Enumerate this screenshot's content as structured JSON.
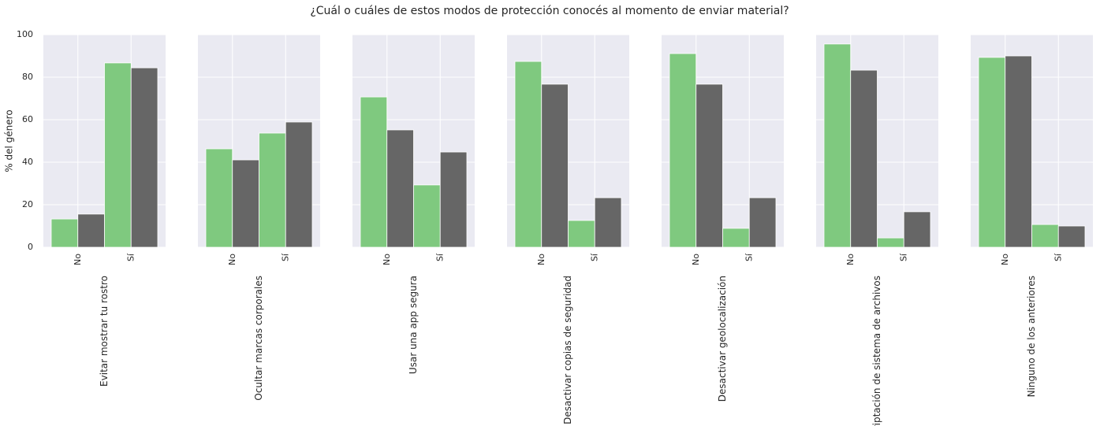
{
  "title": "¿Cuál o cuáles de estos modos de protección conocés al momento de enviar material?",
  "chart_data": [
    {
      "type": "bar",
      "xlabel": "Evitar mostrar tu rostro",
      "ylabel": "% del género",
      "show_ytick_labels": true,
      "categories": [
        "No",
        "Sí"
      ],
      "series": [
        {
          "color": "#7fc97f",
          "values": [
            13.3,
            86.7
          ]
        },
        {
          "color": "#666666",
          "values": [
            15.6,
            84.4
          ]
        }
      ],
      "ylim": [
        0,
        100
      ],
      "yticks": [
        0,
        20,
        40,
        60,
        80,
        100
      ],
      "grid": true
    },
    {
      "type": "bar",
      "xlabel": "Ocultar marcas corporales",
      "show_ytick_labels": false,
      "categories": [
        "No",
        "Sí"
      ],
      "series": [
        {
          "color": "#7fc97f",
          "values": [
            46.3,
            53.7
          ]
        },
        {
          "color": "#666666",
          "values": [
            41.1,
            58.9
          ]
        }
      ],
      "ylim": [
        0,
        100
      ],
      "yticks": [
        0,
        20,
        40,
        60,
        80,
        100
      ],
      "grid": true
    },
    {
      "type": "bar",
      "xlabel": "Usar una app segura",
      "show_ytick_labels": false,
      "categories": [
        "No",
        "Sí"
      ],
      "series": [
        {
          "color": "#7fc97f",
          "values": [
            70.7,
            29.3
          ]
        },
        {
          "color": "#666666",
          "values": [
            55.2,
            44.8
          ]
        }
      ],
      "ylim": [
        0,
        100
      ],
      "yticks": [
        0,
        20,
        40,
        60,
        80,
        100
      ],
      "grid": true
    },
    {
      "type": "bar",
      "xlabel": "Desactivar copias de seguridad",
      "show_ytick_labels": false,
      "categories": [
        "No",
        "Sí"
      ],
      "series": [
        {
          "color": "#7fc97f",
          "values": [
            87.4,
            12.6
          ]
        },
        {
          "color": "#666666",
          "values": [
            76.7,
            23.3
          ]
        }
      ],
      "ylim": [
        0,
        100
      ],
      "yticks": [
        0,
        20,
        40,
        60,
        80,
        100
      ],
      "grid": true
    },
    {
      "type": "bar",
      "xlabel": "Desactivar geolocalización",
      "show_ytick_labels": false,
      "categories": [
        "No",
        "Sí"
      ],
      "series": [
        {
          "color": "#7fc97f",
          "values": [
            91.1,
            8.9
          ]
        },
        {
          "color": "#666666",
          "values": [
            76.7,
            23.3
          ]
        }
      ],
      "ylim": [
        0,
        100
      ],
      "yticks": [
        0,
        20,
        40,
        60,
        80,
        100
      ],
      "grid": true
    },
    {
      "type": "bar",
      "xlabel": "Encriptación de sistema de archivos",
      "show_ytick_labels": false,
      "categories": [
        "No",
        "Sí"
      ],
      "series": [
        {
          "color": "#7fc97f",
          "values": [
            95.6,
            4.4
          ]
        },
        {
          "color": "#666666",
          "values": [
            83.3,
            16.7
          ]
        }
      ],
      "ylim": [
        0,
        100
      ],
      "yticks": [
        0,
        20,
        40,
        60,
        80,
        100
      ],
      "grid": true
    },
    {
      "type": "bar",
      "xlabel": "Ninguno de los anteriores",
      "show_ytick_labels": false,
      "categories": [
        "No",
        "Sí"
      ],
      "series": [
        {
          "color": "#7fc97f",
          "values": [
            89.3,
            10.7
          ]
        },
        {
          "color": "#666666",
          "values": [
            90.0,
            10.0
          ]
        }
      ],
      "ylim": [
        0,
        100
      ],
      "yticks": [
        0,
        20,
        40,
        60,
        80,
        100
      ],
      "grid": true
    }
  ]
}
